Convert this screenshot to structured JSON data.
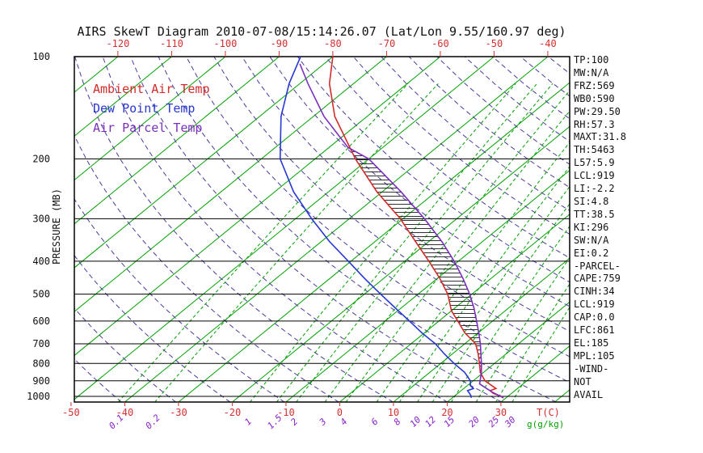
{
  "title": "AIRS SkewT Diagram 2010-07-08/15:14:26.07 (Lat/Lon 9.55/160.97 deg)",
  "legend": [
    {
      "label": "Ambient Air Temp",
      "color": "#d42a2a"
    },
    {
      "label": "Dew Point Temp",
      "color": "#2637d4"
    },
    {
      "label": "Air Parcel Temp",
      "color": "#7b2fbe"
    }
  ],
  "axes": {
    "pressure_label": "PRESSURE (MB)",
    "pressure_ticks": [
      100,
      200,
      300,
      400,
      500,
      600,
      700,
      800,
      900,
      1000
    ],
    "top_temp_ticks": [
      -120,
      -110,
      -100,
      -90,
      -80,
      -70,
      -60,
      -50,
      -40
    ],
    "bottom_temp_ticks": [
      -50,
      -40,
      -30,
      -20,
      -10,
      0,
      10,
      20,
      30
    ],
    "temp_unit_label": "T(C)",
    "mixing_ratio_ticks": [
      0.1,
      0.2,
      1,
      1.5,
      2,
      3,
      4,
      6,
      8,
      10,
      12,
      15,
      20,
      25,
      30
    ],
    "mixing_unit_label": "g(g/kg)"
  },
  "info_panel": [
    "TP:100",
    "MW:N/A",
    "FRZ:569",
    "WB0:590",
    "PW:29.50",
    "RH:57.3",
    "MAXT:31.8",
    "TH:5463",
    "L57:5.9",
    "LCL:919",
    "LI:-2.2",
    "SI:4.8",
    "TT:38.5",
    "KI:296",
    "SW:N/A",
    "EI:0.2",
    "-PARCEL-",
    "CAPE:759",
    "CINH:34",
    "LCL:919",
    "CAP:0.0",
    "LFC:861",
    "EL:185",
    "MPL:105",
    "-WIND-",
    "NOT",
    "AVAIL"
  ],
  "colors": {
    "isotherm": "#00a000",
    "mixing_line": "#00a000",
    "dry_adiabat": "#4a3b9b",
    "pressure_grid": "#000000",
    "axis_red": "#d43030",
    "mixing_label": "#8822cc",
    "unit_green": "#00a000",
    "hatch": "#1a1a1a"
  },
  "chart_data": {
    "type": "line",
    "subtype": "skew-t log-p thermodynamic diagram",
    "title": "AIRS SkewT Diagram 2010-07-08/15:14:26.07 (Lat/Lon 9.55/160.97 deg)",
    "xlabel": "T(C)",
    "ylabel": "PRESSURE (MB)",
    "y_scale": "log",
    "pressure_range_mb": [
      100,
      1040
    ],
    "surface_temp_axis_range_c": [
      -50,
      30
    ],
    "top_temp_axis_range_c": [
      -120,
      -40
    ],
    "point_format": "[pressure_mb, temperature_C]",
    "series": [
      {
        "name": "Ambient Air Temp",
        "color": "#d42a2a",
        "points": [
          [
            1010,
            29.5
          ],
          [
            1000,
            28.8
          ],
          [
            980,
            26.6
          ],
          [
            962,
            25.4
          ],
          [
            948,
            26.0
          ],
          [
            930,
            24.6
          ],
          [
            900,
            22.2
          ],
          [
            850,
            19.4
          ],
          [
            800,
            17.2
          ],
          [
            750,
            14.8
          ],
          [
            700,
            12.0
          ],
          [
            650,
            7.5
          ],
          [
            600,
            3.5
          ],
          [
            560,
            0.0
          ],
          [
            500,
            -4.5
          ],
          [
            450,
            -9.5
          ],
          [
            400,
            -15.5
          ],
          [
            350,
            -22.5
          ],
          [
            300,
            -30.5
          ],
          [
            250,
            -41.0
          ],
          [
            200,
            -52.5
          ],
          [
            150,
            -66.0
          ],
          [
            120,
            -74.5
          ],
          [
            100,
            -80.0
          ]
        ]
      },
      {
        "name": "Dew Point Temp",
        "color": "#2637d4",
        "points": [
          [
            1010,
            23.5
          ],
          [
            1000,
            23.2
          ],
          [
            980,
            22.2
          ],
          [
            962,
            21.2
          ],
          [
            948,
            21.8
          ],
          [
            930,
            20.6
          ],
          [
            900,
            19.5
          ],
          [
            850,
            16.5
          ],
          [
            800,
            12.5
          ],
          [
            750,
            8.5
          ],
          [
            700,
            4.5
          ],
          [
            650,
            -0.5
          ],
          [
            600,
            -5.5
          ],
          [
            550,
            -11.0
          ],
          [
            500,
            -17.0
          ],
          [
            450,
            -23.5
          ],
          [
            400,
            -30.5
          ],
          [
            350,
            -38.5
          ],
          [
            300,
            -47.0
          ],
          [
            250,
            -56.5
          ],
          [
            200,
            -66.5
          ],
          [
            150,
            -76.0
          ],
          [
            120,
            -82.0
          ],
          [
            100,
            -86.0
          ]
        ]
      },
      {
        "name": "Air Parcel Temp",
        "color": "#7b2fbe",
        "points": [
          [
            1010,
            29.5
          ],
          [
            970,
            26.0
          ],
          [
            940,
            23.6
          ],
          [
            919,
            21.9
          ],
          [
            900,
            21.3
          ],
          [
            850,
            19.6
          ],
          [
            800,
            17.6
          ],
          [
            750,
            15.3
          ],
          [
            700,
            12.9
          ],
          [
            650,
            10.1
          ],
          [
            600,
            7.0
          ],
          [
            550,
            3.6
          ],
          [
            500,
            -0.4
          ],
          [
            450,
            -5.2
          ],
          [
            400,
            -10.8
          ],
          [
            350,
            -17.6
          ],
          [
            300,
            -26.0
          ],
          [
            250,
            -36.5
          ],
          [
            200,
            -50.0
          ],
          [
            185,
            -56.5
          ],
          [
            150,
            -68.0
          ],
          [
            120,
            -78.5
          ],
          [
            105,
            -84.5
          ]
        ]
      }
    ],
    "background": {
      "isotherms_c": {
        "min": -120,
        "max": 40,
        "step": 10,
        "style": "solid green"
      },
      "dry_adiabats_k": {
        "min": 220,
        "max": 500,
        "step": 10,
        "style": "dashed purple"
      },
      "mixing_ratio_g_kg": [
        0.1,
        0.2,
        1,
        1.5,
        2,
        3,
        4,
        6,
        8,
        10,
        12,
        15,
        20,
        25,
        30
      ],
      "pressure_gridlines_mb": [
        100,
        200,
        300,
        400,
        500,
        600,
        700,
        800,
        900,
        1000
      ]
    },
    "cape_hatch_region": {
      "from_mb": 858,
      "to_mb": 185,
      "between": [
        "Ambient Air Temp",
        "Air Parcel Temp"
      ]
    },
    "legend_position": "top-left inside plot"
  }
}
